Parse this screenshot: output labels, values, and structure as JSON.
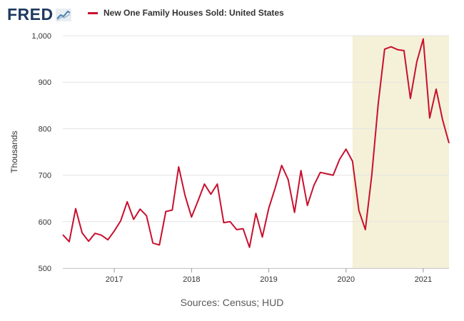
{
  "logo": {
    "text": "FRED",
    "icon": "trend-chart-icon"
  },
  "source": "Sources: Census; HUD",
  "colors": {
    "series": "#c8102e",
    "recession": "#f4f1d8",
    "grid": "#e3e3e3",
    "logo": "#1f3a60"
  },
  "chart_data": {
    "type": "line",
    "title": "",
    "ylabel": "Thousands",
    "xlabel": "",
    "ylim": [
      500,
      1000
    ],
    "yticks": [
      500,
      600,
      700,
      800,
      900,
      1000
    ],
    "ytick_labels": [
      "500",
      "600",
      "700",
      "800",
      "900",
      "1,000"
    ],
    "xticks": [
      "2017",
      "2018",
      "2019",
      "2020",
      "2021"
    ],
    "xlim": [
      "2016-05",
      "2021-05"
    ],
    "grid": true,
    "shaded_period": {
      "start": "2020-02",
      "end": "2021-05"
    },
    "series": [
      {
        "name": "New One Family Houses Sold: United States",
        "x": [
          "2016-05",
          "2016-06",
          "2016-07",
          "2016-08",
          "2016-09",
          "2016-10",
          "2016-11",
          "2016-12",
          "2017-01",
          "2017-02",
          "2017-03",
          "2017-04",
          "2017-05",
          "2017-06",
          "2017-07",
          "2017-08",
          "2017-09",
          "2017-10",
          "2017-11",
          "2017-12",
          "2018-01",
          "2018-02",
          "2018-03",
          "2018-04",
          "2018-05",
          "2018-06",
          "2018-07",
          "2018-08",
          "2018-09",
          "2018-10",
          "2018-11",
          "2018-12",
          "2019-01",
          "2019-02",
          "2019-03",
          "2019-04",
          "2019-05",
          "2019-06",
          "2019-07",
          "2019-08",
          "2019-09",
          "2019-10",
          "2019-11",
          "2019-12",
          "2020-01",
          "2020-02",
          "2020-03",
          "2020-04",
          "2020-05",
          "2020-06",
          "2020-07",
          "2020-08",
          "2020-09",
          "2020-10",
          "2020-11",
          "2020-12",
          "2021-01",
          "2021-02",
          "2021-03",
          "2021-04",
          "2021-05"
        ],
        "values": [
          572,
          557,
          628,
          576,
          558,
          575,
          571,
          561,
          580,
          602,
          643,
          605,
          627,
          613,
          554,
          550,
          622,
          625,
          718,
          656,
          610,
          645,
          681,
          659,
          681,
          598,
          600,
          583,
          585,
          545,
          618,
          567,
          629,
          673,
          721,
          691,
          620,
          710,
          635,
          678,
          706,
          703,
          700,
          734,
          756,
          730,
          624,
          583,
          700,
          853,
          971,
          976,
          970,
          968,
          865,
          944,
          993,
          823,
          885,
          819,
          769
        ]
      }
    ]
  }
}
